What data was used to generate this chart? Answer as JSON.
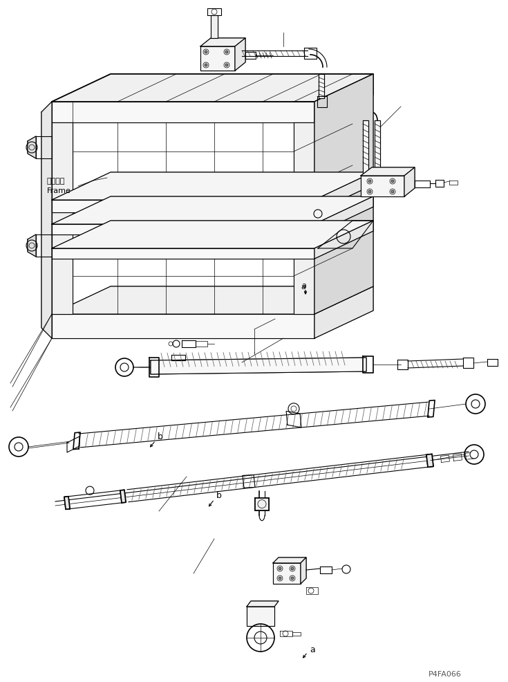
{
  "background_color": "#ffffff",
  "line_color": "#000000",
  "watermark": "P4FA066",
  "label_frame_jp": "フレーム",
  "label_frame_en": "Frame",
  "label_a": "a",
  "label_b": "b",
  "fig_width": 7.35,
  "fig_height": 9.87,
  "dpi": 100
}
